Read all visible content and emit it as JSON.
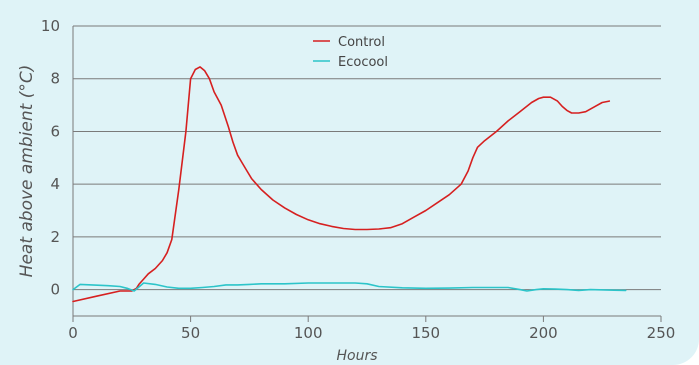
{
  "chart_data": {
    "type": "line",
    "title": "",
    "xlabel": "Hours",
    "ylabel": "Heat above ambient (°C)",
    "xlim": [
      0,
      250
    ],
    "ylim": [
      -1,
      10
    ],
    "xticks": [
      0,
      50,
      100,
      150,
      200,
      250
    ],
    "yticks": [
      0,
      2,
      4,
      6,
      8,
      10
    ],
    "grid": "horizontal",
    "legend": "top-center",
    "series": [
      {
        "name": "Control",
        "color": "#d62020",
        "points": [
          [
            0,
            -0.45
          ],
          [
            10,
            -0.25
          ],
          [
            20,
            -0.05
          ],
          [
            25,
            -0.05
          ],
          [
            27,
            0.05
          ],
          [
            28,
            0.2
          ],
          [
            30,
            0.4
          ],
          [
            32,
            0.6
          ],
          [
            35,
            0.8
          ],
          [
            38,
            1.1
          ],
          [
            40,
            1.4
          ],
          [
            42,
            1.9
          ],
          [
            45,
            3.8
          ],
          [
            48,
            6.0
          ],
          [
            50,
            8.0
          ],
          [
            52,
            8.35
          ],
          [
            54,
            8.45
          ],
          [
            56,
            8.3
          ],
          [
            58,
            8.0
          ],
          [
            60,
            7.5
          ],
          [
            63,
            7.0
          ],
          [
            66,
            6.2
          ],
          [
            68,
            5.6
          ],
          [
            70,
            5.1
          ],
          [
            72,
            4.8
          ],
          [
            74,
            4.5
          ],
          [
            76,
            4.2
          ],
          [
            80,
            3.8
          ],
          [
            85,
            3.4
          ],
          [
            90,
            3.1
          ],
          [
            95,
            2.85
          ],
          [
            100,
            2.65
          ],
          [
            105,
            2.5
          ],
          [
            110,
            2.4
          ],
          [
            115,
            2.32
          ],
          [
            120,
            2.28
          ],
          [
            125,
            2.28
          ],
          [
            130,
            2.3
          ],
          [
            135,
            2.35
          ],
          [
            140,
            2.5
          ],
          [
            145,
            2.75
          ],
          [
            150,
            3.0
          ],
          [
            155,
            3.3
          ],
          [
            160,
            3.6
          ],
          [
            165,
            4.0
          ],
          [
            168,
            4.5
          ],
          [
            170,
            5.0
          ],
          [
            172,
            5.4
          ],
          [
            175,
            5.65
          ],
          [
            180,
            6.0
          ],
          [
            185,
            6.4
          ],
          [
            190,
            6.75
          ],
          [
            195,
            7.1
          ],
          [
            198,
            7.25
          ],
          [
            200,
            7.3
          ],
          [
            203,
            7.3
          ],
          [
            206,
            7.15
          ],
          [
            208,
            6.95
          ],
          [
            210,
            6.8
          ],
          [
            212,
            6.7
          ],
          [
            215,
            6.7
          ],
          [
            218,
            6.75
          ],
          [
            222,
            6.95
          ],
          [
            225,
            7.1
          ],
          [
            228,
            7.15
          ]
        ]
      },
      {
        "name": "Ecocool",
        "color": "#2cc4c9",
        "points": [
          [
            0,
            0.0
          ],
          [
            3,
            0.2
          ],
          [
            8,
            0.18
          ],
          [
            15,
            0.15
          ],
          [
            20,
            0.12
          ],
          [
            23,
            0.05
          ],
          [
            26,
            -0.05
          ],
          [
            28,
            0.1
          ],
          [
            30,
            0.25
          ],
          [
            35,
            0.2
          ],
          [
            40,
            0.1
          ],
          [
            45,
            0.05
          ],
          [
            50,
            0.05
          ],
          [
            55,
            0.08
          ],
          [
            60,
            0.12
          ],
          [
            65,
            0.18
          ],
          [
            70,
            0.18
          ],
          [
            75,
            0.2
          ],
          [
            80,
            0.22
          ],
          [
            90,
            0.22
          ],
          [
            100,
            0.25
          ],
          [
            110,
            0.25
          ],
          [
            120,
            0.25
          ],
          [
            125,
            0.22
          ],
          [
            130,
            0.12
          ],
          [
            140,
            0.07
          ],
          [
            150,
            0.05
          ],
          [
            160,
            0.06
          ],
          [
            170,
            0.08
          ],
          [
            185,
            0.08
          ],
          [
            190,
            0.0
          ],
          [
            193,
            -0.05
          ],
          [
            197,
            0.0
          ],
          [
            200,
            0.03
          ],
          [
            205,
            0.02
          ],
          [
            210,
            0.0
          ],
          [
            215,
            -0.03
          ],
          [
            220,
            0.0
          ],
          [
            230,
            -0.02
          ],
          [
            235,
            -0.03
          ]
        ]
      }
    ]
  }
}
